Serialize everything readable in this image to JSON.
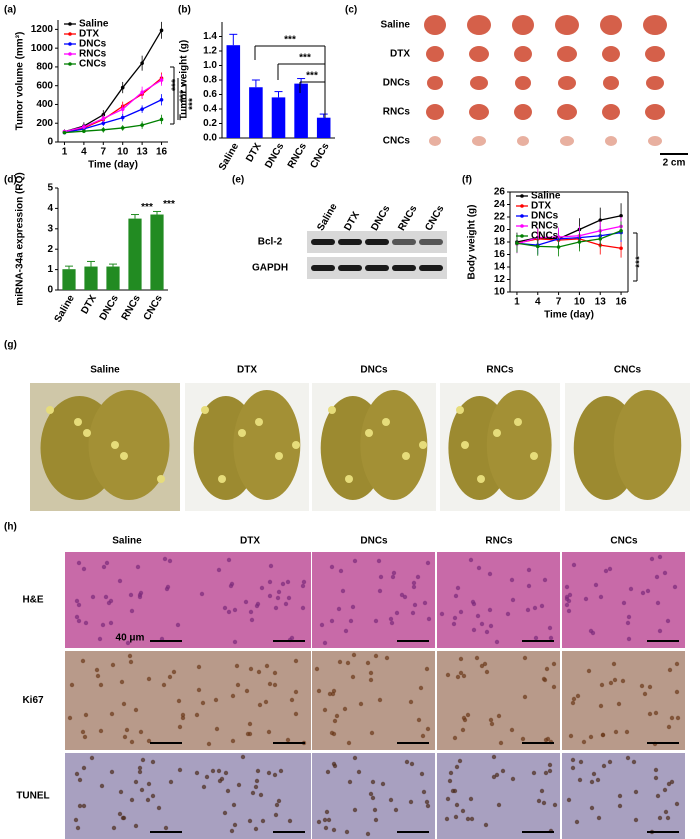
{
  "panel_labels": [
    "(a)",
    "(b)",
    "(c)",
    "(d)",
    "(e)",
    "(f)",
    "(g)",
    "(h)"
  ],
  "chart_data": [
    {
      "type": "line",
      "x_label": "Time (day)",
      "y_label": "Tumor volume (mm³)",
      "x": [
        1,
        4,
        7,
        10,
        13,
        16
      ],
      "xlim": [
        0,
        17
      ],
      "xticks": [
        1,
        4,
        7,
        10,
        13,
        16
      ],
      "ylim": [
        0,
        1300
      ],
      "yticks": [
        0,
        200,
        400,
        600,
        800,
        1000,
        1200
      ],
      "series": [
        {
          "name": "Saline",
          "color": "#000000",
          "values": [
            110,
            170,
            290,
            580,
            840,
            1190
          ],
          "errors": [
            25,
            40,
            50,
            60,
            80,
            90
          ]
        },
        {
          "name": "DTX",
          "color": "#ff0000",
          "values": [
            105,
            150,
            240,
            380,
            510,
            680
          ],
          "errors": [
            20,
            30,
            40,
            50,
            50,
            60
          ]
        },
        {
          "name": "DNCs",
          "color": "#0000ff",
          "values": [
            100,
            140,
            200,
            260,
            350,
            450
          ],
          "errors": [
            20,
            25,
            30,
            40,
            40,
            60
          ]
        },
        {
          "name": "RNCs",
          "color": "#ff00ff",
          "values": [
            110,
            160,
            250,
            350,
            530,
            660
          ],
          "errors": [
            20,
            30,
            40,
            50,
            60,
            60
          ]
        },
        {
          "name": "CNCs",
          "color": "#008000",
          "values": [
            100,
            115,
            130,
            150,
            180,
            240
          ],
          "errors": [
            15,
            20,
            30,
            30,
            40,
            50
          ]
        }
      ],
      "annotations": [
        "***",
        "***",
        "***"
      ]
    },
    {
      "type": "bar",
      "y_label": "Tumor weight (g)",
      "color": "#0000ff",
      "categories": [
        "Saline",
        "DTX",
        "DNCs",
        "RNCs",
        "CNCs"
      ],
      "values": [
        1.28,
        0.7,
        0.56,
        0.75,
        0.28
      ],
      "errors": [
        0.15,
        0.1,
        0.08,
        0.07,
        0.05
      ],
      "ylim": [
        0,
        1.6
      ],
      "yticks": [
        {
          "value": 0,
          "label": "0.0"
        },
        0.2,
        0.4,
        0.6,
        0.8,
        {
          "value": 1,
          "label": "1.0"
        },
        1.2,
        1.4
      ],
      "annotations": [
        "***",
        "***",
        "***"
      ]
    },
    {
      "type": "bar",
      "y_label": "miRNA-34a expression (RQ)",
      "color": "#228b22",
      "categories": [
        "Saline",
        "DTX",
        "DNCs",
        "RNCs",
        "CNCs"
      ],
      "values": [
        1.02,
        1.15,
        1.15,
        3.5,
        3.7
      ],
      "errors": [
        0.15,
        0.25,
        0.12,
        0.2,
        0.15
      ],
      "ylim": [
        0,
        5
      ],
      "yticks": [
        0,
        1,
        2,
        3,
        4,
        5
      ],
      "annotations": [
        "***",
        "***"
      ]
    },
    {
      "type": "line",
      "x_label": "Time (day)",
      "y_label": "Body weight (g)",
      "x": [
        1,
        4,
        7,
        10,
        13,
        16
      ],
      "xlim": [
        0,
        17
      ],
      "xticks": [
        1,
        4,
        7,
        10,
        13,
        16
      ],
      "ylim": [
        10,
        26
      ],
      "yticks": [
        10,
        12,
        14,
        16,
        18,
        20,
        22,
        24,
        26
      ],
      "series": [
        {
          "name": "Saline",
          "color": "#000000",
          "values": [
            18,
            18.7,
            18.5,
            20,
            21.5,
            22.2
          ],
          "errors": [
            1.5,
            1.5,
            1.5,
            1.8,
            2,
            2
          ]
        },
        {
          "name": "DTX",
          "color": "#ff0000",
          "values": [
            17.8,
            18.5,
            18.3,
            18.5,
            17.5,
            17
          ],
          "errors": [
            1.5,
            1.5,
            1.5,
            1.5,
            1.5,
            1.5
          ]
        },
        {
          "name": "DNCs",
          "color": "#0000ff",
          "values": [
            17.8,
            17.5,
            18.5,
            18.7,
            19,
            19.5
          ],
          "errors": [
            1.5,
            1.5,
            1.5,
            1.5,
            1.5,
            1.5
          ]
        },
        {
          "name": "RNCs",
          "color": "#ff00ff",
          "values": [
            17.7,
            18.7,
            18.8,
            19,
            19.8,
            20.5
          ],
          "errors": [
            1.5,
            1.5,
            1.5,
            1.5,
            1.5,
            1.5
          ]
        },
        {
          "name": "CNCs",
          "color": "#008000",
          "values": [
            17.8,
            17.3,
            17.2,
            18,
            18.5,
            19.8
          ],
          "errors": [
            1.5,
            1.5,
            1.5,
            1.5,
            1.5,
            1.5
          ]
        }
      ],
      "annotations": [
        "***"
      ]
    }
  ],
  "tumor_photos": {
    "rows": [
      "Saline",
      "DTX",
      "DNCs",
      "RNCs",
      "CNCs"
    ],
    "scale_bar": "2 cm"
  },
  "western_blot": {
    "columns": [
      "Saline",
      "DTX",
      "DNCs",
      "RNCs",
      "CNCs"
    ],
    "rows": [
      "Bcl-2",
      "GAPDH"
    ]
  },
  "liver_photos": {
    "columns": [
      "Saline",
      "DTX",
      "DNCs",
      "RNCs",
      "CNCs"
    ]
  },
  "histology": {
    "columns": [
      "Saline",
      "DTX",
      "DNCs",
      "RNCs",
      "CNCs"
    ],
    "rows": [
      "H&E",
      "Ki67",
      "TUNEL"
    ],
    "scale_bar": "40 μm"
  }
}
